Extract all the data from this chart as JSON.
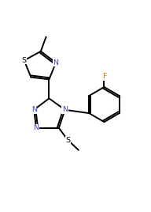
{
  "bg_color": "#ffffff",
  "line_color": "#000000",
  "N_color": "#4040c0",
  "F_color": "#cc7700",
  "line_width": 1.4,
  "font_size": 6.8,
  "figsize": [
    1.92,
    2.68
  ],
  "dpi": 100,
  "xlim": [
    -0.5,
    9.5
  ],
  "ylim": [
    3.5,
    14.5
  ]
}
